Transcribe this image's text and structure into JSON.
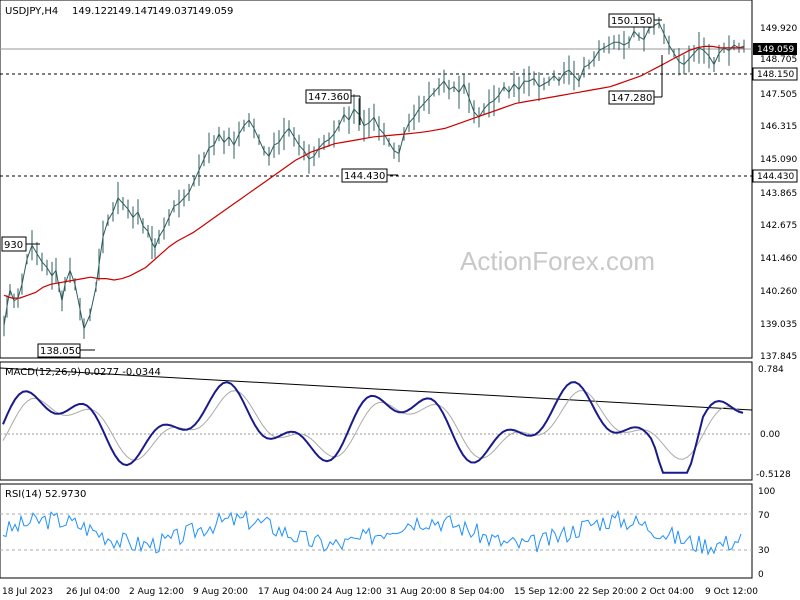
{
  "chart_data": [
    {
      "type": "line",
      "panel": "price",
      "header": {
        "symbol": "USDJPY,H4",
        "open": "149.122",
        "high": "149.147",
        "low": "149.037",
        "close": "149.059"
      },
      "x_ticks": [
        "18 Jul 2023",
        "26 Jul 04:00",
        "2 Aug 12:00",
        "9 Aug 20:00",
        "17 Aug 04:00",
        "24 Aug 12:00",
        "31 Aug 20:00",
        "8 Sep 04:00",
        "15 Sep 12:00",
        "22 Sep 20:00",
        "2 Oct 04:00",
        "9 Oct 12:00"
      ],
      "y_ticks": [
        "149.920",
        "148.705",
        "147.505",
        "146.315",
        "145.090",
        "143.865",
        "142.675",
        "141.460",
        "140.260",
        "139.035",
        "137.845"
      ],
      "ylim": [
        137.845,
        150.0
      ],
      "price_x": [
        0,
        3,
        6,
        10,
        14,
        18,
        23,
        28,
        33,
        38,
        43,
        48,
        52,
        55,
        58,
        61,
        66,
        71,
        76,
        80,
        86,
        92,
        95,
        99,
        104,
        109,
        114,
        119,
        124,
        129,
        134,
        139,
        144,
        148,
        151,
        155,
        160,
        165,
        170,
        175,
        180,
        185,
        190,
        195,
        200,
        205,
        210,
        215,
        220,
        225,
        230,
        235,
        240,
        245,
        250,
        255,
        260,
        265,
        270,
        275,
        280,
        285,
        290,
        295,
        300,
        305,
        310,
        315,
        320,
        325,
        330,
        335,
        340,
        345,
        350,
        355,
        360,
        365,
        370,
        375,
        380,
        385,
        390,
        395,
        400,
        405,
        410,
        415,
        420,
        425,
        430,
        435,
        440,
        445,
        450,
        455,
        460,
        465,
        470,
        475,
        480,
        485,
        490,
        495,
        500,
        505,
        510,
        515,
        520,
        525,
        530,
        535,
        540,
        545,
        550,
        555,
        560,
        565,
        570,
        575,
        580,
        585,
        590,
        595,
        600,
        605,
        610,
        615,
        620,
        625,
        630,
        635,
        640,
        645,
        650,
        655,
        660,
        665,
        670,
        675,
        680,
        685,
        690,
        695,
        700,
        705,
        710,
        715,
        720,
        725,
        730,
        735,
        740
      ],
      "price_y": [
        139.0,
        139.7,
        140.3,
        139.9,
        140.0,
        140.5,
        141.4,
        141.9,
        141.6,
        141.3,
        141.1,
        140.8,
        141.0,
        140.4,
        139.9,
        140.5,
        141.0,
        140.5,
        139.6,
        138.9,
        139.4,
        140.4,
        141.2,
        142.2,
        142.8,
        143.1,
        143.6,
        143.4,
        143.2,
        142.9,
        143.1,
        142.6,
        142.4,
        142.0,
        141.8,
        142.2,
        142.5,
        142.9,
        143.3,
        143.4,
        143.6,
        143.8,
        144.2,
        144.6,
        145.0,
        145.4,
        145.5,
        145.9,
        145.6,
        145.8,
        145.5,
        145.9,
        146.2,
        146.4,
        146.1,
        145.7,
        145.3,
        145.1,
        145.5,
        145.6,
        145.9,
        146.1,
        145.8,
        145.5,
        145.3,
        145.0,
        145.1,
        145.4,
        145.6,
        145.7,
        145.9,
        146.2,
        146.6,
        146.4,
        146.8,
        146.6,
        146.2,
        146.3,
        146.5,
        146.1,
        145.9,
        145.6,
        145.3,
        145.2,
        145.9,
        146.3,
        146.5,
        146.8,
        147.0,
        147.2,
        147.4,
        147.6,
        147.8,
        147.5,
        147.6,
        147.4,
        147.7,
        147.2,
        146.7,
        146.5,
        146.8,
        147.0,
        147.1,
        147.3,
        147.6,
        147.4,
        147.7,
        147.5,
        147.8,
        147.8,
        147.9,
        147.6,
        147.7,
        147.8,
        148.0,
        147.8,
        148.1,
        148.2,
        148.0,
        147.8,
        148.3,
        148.4,
        148.6,
        148.9,
        149.0,
        149.1,
        149.2,
        149.2,
        149.1,
        149.2,
        149.6,
        149.4,
        149.3,
        149.7,
        149.8,
        149.9,
        149.5,
        149.1,
        148.8,
        148.5,
        148.4,
        148.6,
        148.8,
        149.0,
        148.9,
        148.7,
        148.4,
        148.8,
        149.0,
        148.9,
        149.1,
        149.0,
        149.06
      ],
      "ma_y": [
        140.1,
        140.0,
        140.0,
        140.1,
        140.2,
        140.4,
        140.5,
        140.55,
        140.6,
        140.65,
        140.7,
        140.75,
        140.7,
        140.7,
        140.65,
        140.7,
        140.8,
        140.95,
        141.1,
        141.35,
        141.6,
        141.85,
        142.05,
        142.2,
        142.35,
        142.55,
        142.75,
        142.95,
        143.15,
        143.35,
        143.55,
        143.75,
        143.95,
        144.15,
        144.35,
        144.55,
        144.75,
        144.95,
        145.1,
        145.25,
        145.35,
        145.45,
        145.55,
        145.6,
        145.65,
        145.7,
        145.75,
        145.8,
        145.82,
        145.85,
        145.88,
        145.9,
        145.93,
        145.96,
        146.0,
        146.05,
        146.1,
        146.2,
        146.3,
        146.4,
        146.5,
        146.6,
        146.7,
        146.8,
        146.9,
        147.0,
        147.05,
        147.1,
        147.15,
        147.2,
        147.25,
        147.3,
        147.35,
        147.4,
        147.45,
        147.5,
        147.55,
        147.6,
        147.7,
        147.8,
        147.9,
        148.0,
        148.15,
        148.3,
        148.45,
        148.6,
        148.75,
        148.9,
        149.0,
        149.05,
        149.05,
        149.0,
        149.0,
        149.0,
        149.0
      ],
      "horizontal_lines": [
        {
          "value": 149.059,
          "label": "149.059",
          "style": "solid"
        },
        {
          "value": 148.15,
          "label": "148.150",
          "style": "dashed"
        },
        {
          "value": 144.43,
          "label": "144.430",
          "style": "dashed"
        }
      ],
      "annotations": [
        "930",
        "138.050",
        "147.360",
        "144.430",
        "150.150",
        "147.280"
      ],
      "watermark": "ActionForex.com"
    },
    {
      "type": "line",
      "panel": "macd",
      "header": "MACD(12,26,9) 0.0277 -0.0344",
      "y_ticks": [
        "0.784",
        "0.00",
        "-0.5128"
      ],
      "ylim": [
        -0.5128,
        0.784
      ],
      "trendline": [
        [
          0,
          0.784
        ],
        [
          750,
          0.32
        ]
      ]
    },
    {
      "type": "line",
      "panel": "rsi",
      "header": "RSI(14) 52.9730",
      "y_ticks": [
        "100",
        "70",
        "30",
        "0"
      ],
      "levels": [
        70,
        30
      ],
      "ylim": [
        0,
        100
      ]
    }
  ]
}
